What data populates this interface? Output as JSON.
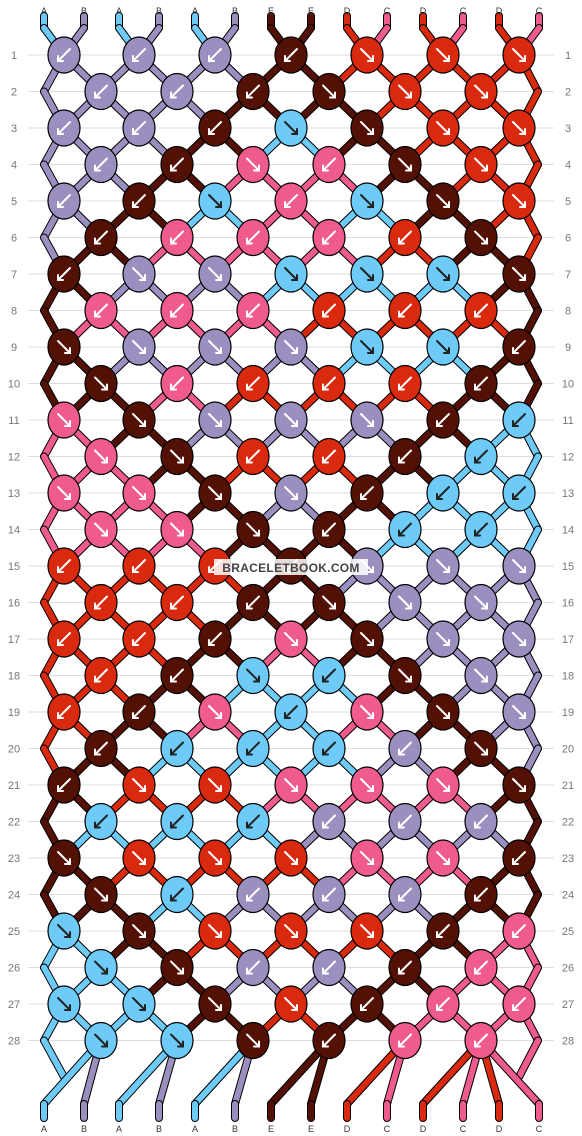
{
  "watermark": "BRACELETBOOK.COM",
  "string_labels": [
    "A",
    "B",
    "A",
    "B",
    "A",
    "B",
    "E",
    "E",
    "D",
    "C",
    "D",
    "C",
    "D",
    "C"
  ],
  "colors": {
    "A": "#6ecbf8",
    "B": "#9b8fc0",
    "C": "#ef5b8c",
    "D": "#d9290f",
    "E": "#531106",
    "knot_outline": "#000000",
    "arrow": "#ffffff",
    "background": "#ffffff",
    "grid_line": "#dddddd"
  },
  "row_numbers": [
    "1",
    "2",
    "3",
    "4",
    "5",
    "6",
    "7",
    "8",
    "9",
    "10",
    "11",
    "12",
    "13",
    "14",
    "15",
    "16",
    "17",
    "18",
    "19",
    "20",
    "21",
    "22",
    "23",
    "24",
    "25",
    "26",
    "27",
    "28"
  ],
  "knot_rows": [
    [
      "B:sw",
      "B:sw",
      "B:sw",
      "E:sw",
      "D:se",
      "D:se",
      "D:se"
    ],
    [
      "B:sw",
      "B:sw",
      "E:sw",
      "E:se",
      "D:se",
      "D:se"
    ],
    [
      "B:sw",
      "B:sw",
      "E:sw",
      "A:se",
      "E:se",
      "D:se",
      "D:se"
    ],
    [
      "B:sw",
      "E:sw",
      "C:se",
      "C:sw",
      "E:se",
      "D:se"
    ],
    [
      "B:sw",
      "E:sw",
      "A:se",
      "C:sw",
      "A:se",
      "E:se",
      "D:se"
    ],
    [
      "E:sw",
      "C:sw",
      "C:sw",
      "C:sw",
      "D:sw",
      "E:se"
    ],
    [
      "E:sw",
      "B:se",
      "B:se",
      "A:se",
      "A:se",
      "A:se",
      "E:se"
    ],
    [
      "C:sw",
      "C:sw",
      "C:sw",
      "D:sw",
      "D:sw",
      "D:sw"
    ],
    [
      "E:se",
      "B:se",
      "B:se",
      "B:se",
      "A:se",
      "A:se",
      "E:sw"
    ],
    [
      "E:se",
      "C:sw",
      "D:sw",
      "D:sw",
      "D:sw",
      "E:sw"
    ],
    [
      "C:se",
      "E:se",
      "B:se",
      "B:se",
      "B:se",
      "E:sw",
      "A:sw"
    ],
    [
      "C:se",
      "E:se",
      "D:sw",
      "D:sw",
      "E:sw",
      "A:sw"
    ],
    [
      "C:se",
      "C:se",
      "E:se",
      "B:se",
      "E:sw",
      "A:sw",
      "A:sw"
    ],
    [
      "C:se",
      "C:se",
      "E:se",
      "E:sw",
      "A:sw",
      "A:sw"
    ],
    [
      "D:sw",
      "D:sw",
      "D:sw",
      "E:sw",
      "B:se",
      "B:se",
      "B:se"
    ],
    [
      "D:sw",
      "D:sw",
      "E:sw",
      "E:se",
      "B:se",
      "B:se"
    ],
    [
      "D:sw",
      "D:sw",
      "E:sw",
      "C:se",
      "E:se",
      "B:se",
      "B:se"
    ],
    [
      "D:sw",
      "E:sw",
      "A:se",
      "A:sw",
      "E:se",
      "B:se"
    ],
    [
      "D:sw",
      "E:sw",
      "C:se",
      "A:sw",
      "C:se",
      "E:se",
      "B:se"
    ],
    [
      "E:sw",
      "A:sw",
      "A:sw",
      "A:sw",
      "B:sw",
      "E:se"
    ],
    [
      "E:sw",
      "D:se",
      "D:se",
      "C:se",
      "C:se",
      "C:se",
      "E:se"
    ],
    [
      "A:sw",
      "A:sw",
      "A:sw",
      "B:sw",
      "B:sw",
      "B:sw"
    ],
    [
      "E:se",
      "D:se",
      "D:se",
      "D:se",
      "C:se",
      "C:se",
      "E:sw"
    ],
    [
      "E:se",
      "A:sw",
      "B:sw",
      "B:sw",
      "B:sw",
      "E:sw"
    ],
    [
      "A:se",
      "E:se",
      "D:se",
      "D:se",
      "D:se",
      "E:sw",
      "C:sw"
    ],
    [
      "A:se",
      "E:se",
      "B:sw",
      "B:sw",
      "E:sw",
      "C:sw"
    ],
    [
      "A:se",
      "A:se",
      "E:se",
      "D:se",
      "E:sw",
      "C:sw",
      "C:sw"
    ],
    [
      "A:se",
      "A:se",
      "E:se",
      "E:sw",
      "C:sw",
      "C:sw"
    ]
  ]
}
